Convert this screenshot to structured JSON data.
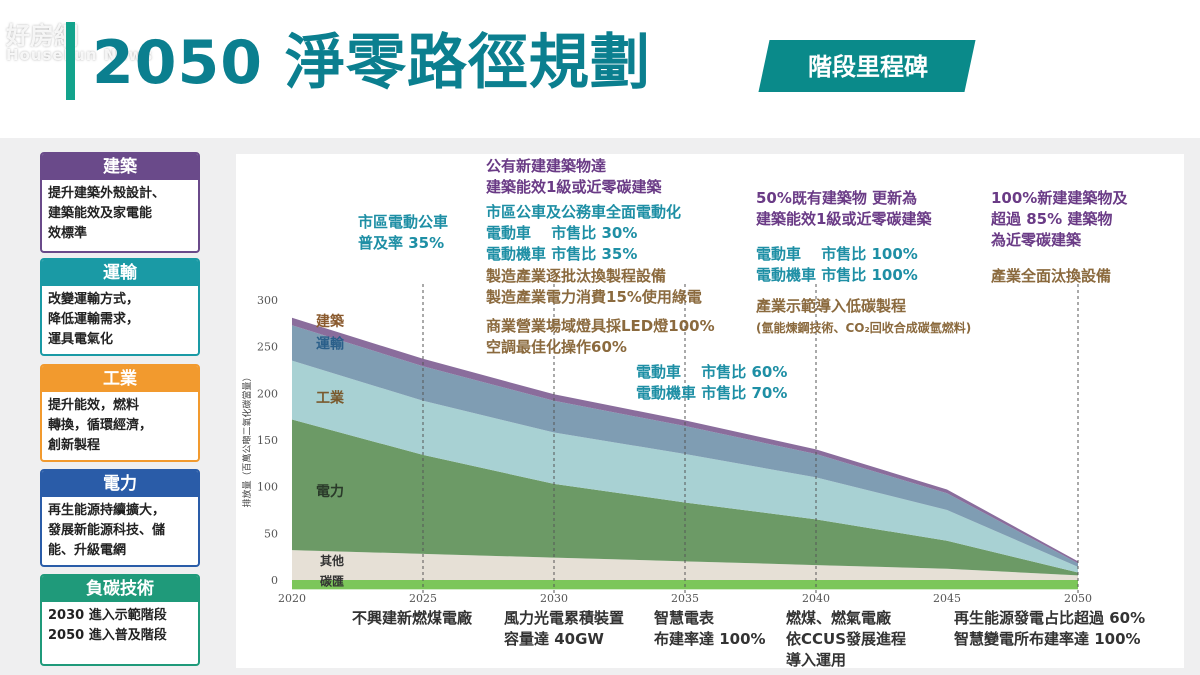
{
  "header": {
    "title": "2050 淨零路徑規劃",
    "tag": "階段里程碑",
    "watermark_cn": "好房網",
    "watermark_en": "HouseFun News"
  },
  "sectors": [
    {
      "title": "建築",
      "body": "提升建築外殼設計、\n建築能效及家電能\n效標準",
      "color": "#6a4a8a"
    },
    {
      "title": "運輸",
      "body": "改變運輸方式，\n降低運輸需求，\n運具電氣化",
      "color": "#1a9aa5"
    },
    {
      "title": "工業",
      "body": "提升能效，燃料\n轉換，循環經濟，\n創新製程",
      "color": "#f29a2e"
    },
    {
      "title": "電力",
      "body": "再生能源持續擴大，\n發展新能源科技、儲\n能、升級電網",
      "color": "#2a5ca8"
    },
    {
      "title": "負碳技術",
      "body": "2030 進入示範階段\n2050 進入普及階段",
      "color": "#1f9a7a"
    }
  ],
  "annotations": {
    "a1": "市區電動公車\n普及率 35%",
    "a2": "公有新建建築物達\n建築能效1級或近零碳建築",
    "a3": "市區公車及公務車全面電動化\n電動車　 市售比 30%\n電動機車 市售比 35%",
    "a4": "製造產業逐批汰換製程設備\n製造產業電力消費15%使用綠電",
    "a5": "商業營業場域燈具採LED燈100%\n空調最佳化操作60%",
    "a6": "電動車　 市售比 60%\n電動機車 市售比 70%",
    "a7": "50%既有建築物 更新為\n建築能效1級或近零碳建築",
    "a8": "電動車　 市售比 100%\n電動機車 市售比 100%",
    "a9": "產業示範導入低碳製程",
    "a10": "(氫能煉鋼技術、CO₂回收合成碳氫燃料)",
    "a11": "100%新建建築物及\n超過 85% 建築物\n為近零碳建築",
    "a12": "產業全面汰換設備",
    "b1": "不興建新燃煤電廠",
    "b2": "風力光電累積裝置\n容量達 40GW",
    "b3": "智慧電表\n布建率達 100%",
    "b4": "燃煤、燃氣電廠\n依CCUS發展進程\n導入運用",
    "b5": "再生能源發電占比超過 60%\n智慧變電所布建率達 100%"
  },
  "chart_data": {
    "type": "area",
    "stacked": true,
    "x": [
      2020,
      2025,
      2030,
      2035,
      2040,
      2045,
      2050
    ],
    "xlim": [
      2020,
      2050
    ],
    "ylim": [
      0,
      300
    ],
    "yticks": [
      0,
      50,
      100,
      150,
      200,
      250,
      300
    ],
    "ylabel": "排放量（百萬公噸二氧化碳當量）",
    "grid": false,
    "milestone_lines": [
      2025,
      2030,
      2035,
      2040,
      2050
    ],
    "series": [
      {
        "name": "碳匯",
        "values": [
          -10,
          -10,
          -10,
          -10,
          -10,
          -10,
          -10
        ],
        "color": "#7cc65a"
      },
      {
        "name": "其他",
        "values": [
          32,
          28,
          24,
          20,
          16,
          12,
          5
        ],
        "color": "#e6e0d6"
      },
      {
        "name": "電力",
        "values": [
          140,
          106,
          79,
          63,
          49,
          30,
          3
        ],
        "color": "#6c9a66"
      },
      {
        "name": "工業",
        "values": [
          63,
          58,
          55,
          52,
          45,
          33,
          6
        ],
        "color": "#a8d1d3"
      },
      {
        "name": "運輸",
        "values": [
          38,
          37,
          34,
          30,
          25,
          18,
          4
        ],
        "color": "#7f9db3"
      },
      {
        "name": "建築",
        "values": [
          8,
          8,
          7,
          6,
          5,
          4,
          2
        ],
        "color": "#8a6d9c"
      }
    ]
  }
}
